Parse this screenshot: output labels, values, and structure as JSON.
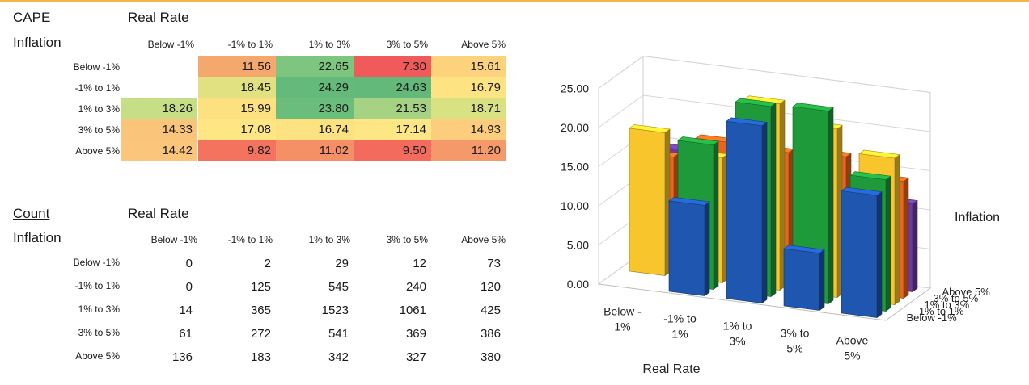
{
  "cape_table": {
    "title": "CAPE",
    "col_group_label": "Real Rate",
    "row_group_label": "Inflation",
    "columns": [
      "Below -1%",
      "-1% to 1%",
      "1% to 3%",
      "3% to 5%",
      "Above 5%"
    ],
    "rows": [
      {
        "label": "Below -1%",
        "values": [
          "",
          "11.56",
          "22.65",
          "7.30",
          "15.61"
        ]
      },
      {
        "label": "-1% to 1%",
        "values": [
          "",
          "18.45",
          "24.29",
          "24.63",
          "16.79"
        ]
      },
      {
        "label": "1% to 3%",
        "values": [
          "18.26",
          "15.99",
          "23.80",
          "21.53",
          "18.71"
        ]
      },
      {
        "label": "3% to 5%",
        "values": [
          "14.33",
          "17.08",
          "16.74",
          "17.14",
          "14.93"
        ]
      },
      {
        "label": "Above 5%",
        "values": [
          "14.42",
          "9.82",
          "11.02",
          "9.50",
          "11.20"
        ]
      }
    ],
    "cell_colors": [
      [
        "#ffffff",
        "#f5a86c",
        "#7ec57f",
        "#f05a5a",
        "#fdd27c"
      ],
      [
        "#ffffff",
        "#e1e182",
        "#64ba7a",
        "#62b97a",
        "#fde382"
      ],
      [
        "#c6de86",
        "#fde080",
        "#6abd7b",
        "#a6d283",
        "#d8e283"
      ],
      [
        "#fbc47b",
        "#ffe684",
        "#fde282",
        "#ffe684",
        "#fccd7d"
      ],
      [
        "#fbc67b",
        "#f4735f",
        "#f58f65",
        "#f36b5d",
        "#f5996a"
      ]
    ]
  },
  "count_table": {
    "title": "Count",
    "col_group_label": "Real Rate",
    "row_group_label": "Inflation",
    "columns": [
      "Below -1%",
      "-1% to 1%",
      "1% to 3%",
      "3% to 5%",
      "Above 5%"
    ],
    "rows": [
      {
        "label": "Below -1%",
        "values": [
          "0",
          "2",
          "29",
          "12",
          "73"
        ]
      },
      {
        "label": "-1% to 1%",
        "values": [
          "0",
          "125",
          "545",
          "240",
          "120"
        ]
      },
      {
        "label": "1% to 3%",
        "values": [
          "14",
          "365",
          "1523",
          "1061",
          "425"
        ]
      },
      {
        "label": "3% to 5%",
        "values": [
          "61",
          "272",
          "541",
          "369",
          "386"
        ]
      },
      {
        "label": "Above 5%",
        "values": [
          "136",
          "183",
          "342",
          "327",
          "380"
        ]
      }
    ]
  },
  "chart_data": {
    "type": "bar",
    "subtype": "3d-column",
    "categories": [
      "Below -1%",
      "-1% to 1%",
      "1% to 3%",
      "3% to 5%",
      "Above 5%"
    ],
    "category_tick_lines": [
      [
        "Below -",
        "1%"
      ],
      [
        "-1% to",
        "1%"
      ],
      [
        "1% to",
        "3%"
      ],
      [
        "3% to",
        "5%"
      ],
      [
        "Above",
        "5%"
      ]
    ],
    "series": [
      {
        "name": "Below -1%",
        "color": "#1f56b0",
        "values": [
          0,
          11.56,
          22.65,
          7.3,
          15.61
        ]
      },
      {
        "name": "-1% to 1%",
        "color": "#1f9a3b",
        "values": [
          0,
          18.45,
          24.29,
          24.63,
          16.79
        ]
      },
      {
        "name": "1% to 3%",
        "color": "#f8c52c",
        "values": [
          18.26,
          15.99,
          23.8,
          21.53,
          18.71
        ]
      },
      {
        "name": "3% to 5%",
        "color": "#e8651c",
        "values": [
          14.33,
          17.08,
          16.74,
          17.14,
          14.93
        ]
      },
      {
        "name": "Above 5%",
        "color": "#6b3a9e",
        "values": [
          14.42,
          9.82,
          11.02,
          9.5,
          11.2
        ]
      }
    ],
    "y_ticks": [
      "0.00",
      "5.00",
      "10.00",
      "15.00",
      "20.00",
      "25.00"
    ],
    "ylim": [
      0,
      25
    ],
    "xlabel": "Real Rate",
    "zlabel": "Inflation",
    "grid": true
  }
}
